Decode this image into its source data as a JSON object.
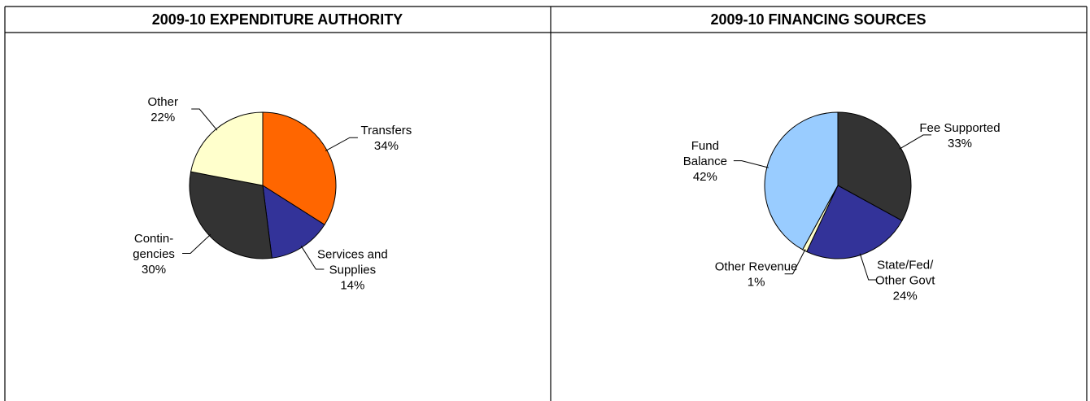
{
  "chart_data": [
    {
      "type": "pie",
      "title": "2009-10 EXPENDITURE AUTHORITY",
      "categories": [
        "Transfers",
        "Services and\nSupplies",
        "Contin-\ngencies",
        "Other"
      ],
      "values": [
        34,
        14,
        30,
        22
      ],
      "value_labels": [
        "34%",
        "14%",
        "30%",
        "22%"
      ],
      "colors": [
        "#ff6600",
        "#333399",
        "#333333",
        "#ffffcc"
      ]
    },
    {
      "type": "pie",
      "title": "2009-10 FINANCING SOURCES",
      "categories": [
        "Fee Supported",
        "State/Fed/\nOther Govt",
        "Other Revenue",
        "Fund\nBalance"
      ],
      "values": [
        33,
        24,
        1,
        42
      ],
      "value_labels": [
        "33%",
        "24%",
        "1%",
        "42%"
      ],
      "colors": [
        "#333333",
        "#333399",
        "#ffffcc",
        "#99ccff"
      ]
    }
  ]
}
